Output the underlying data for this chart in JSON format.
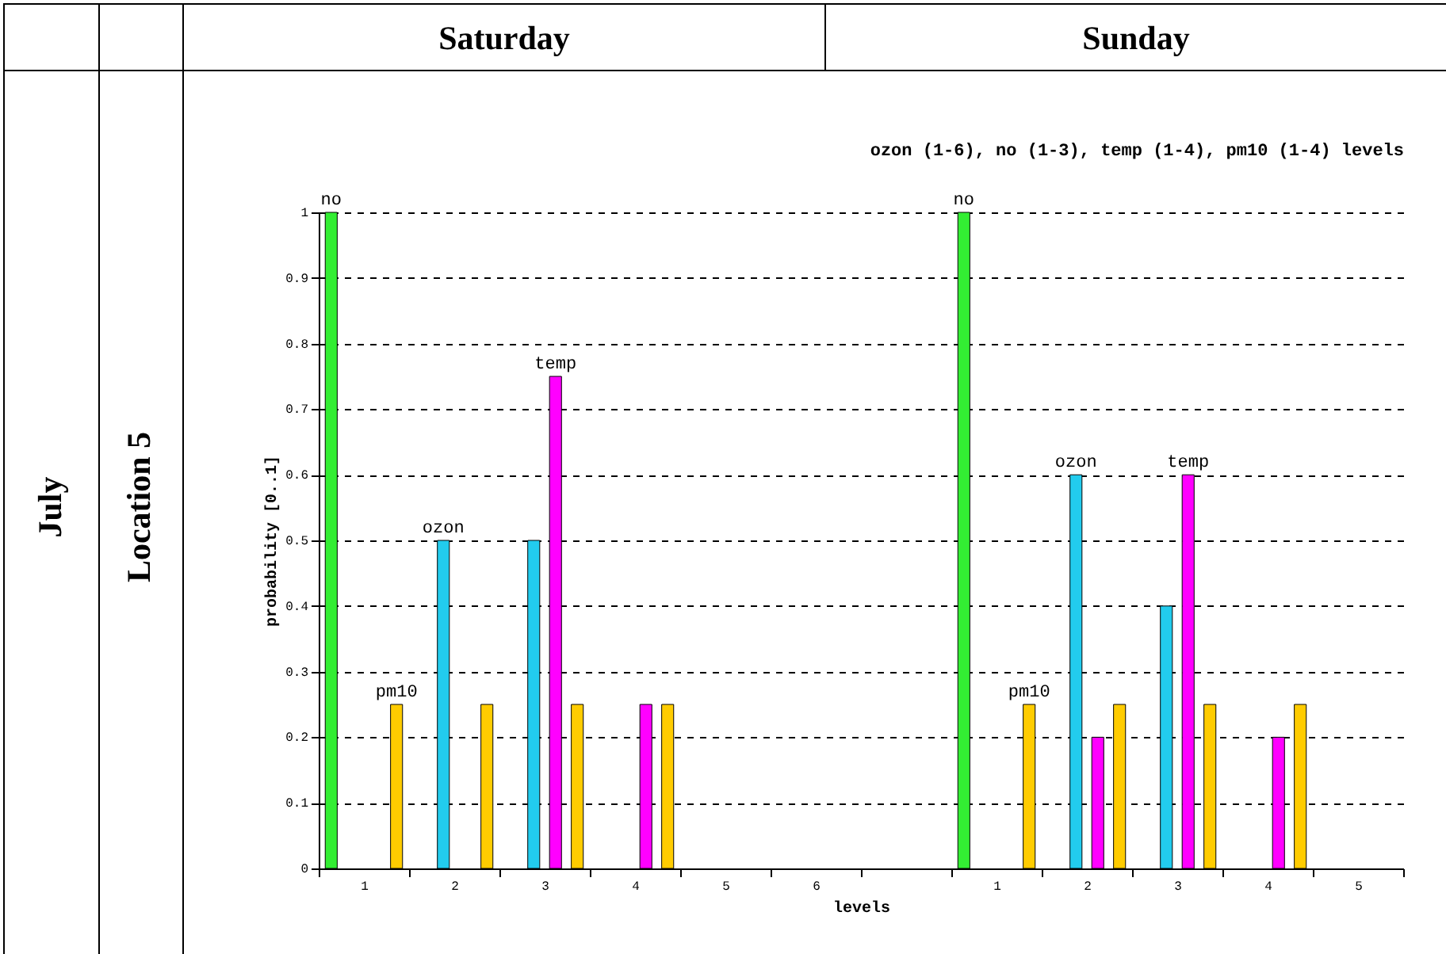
{
  "chart_data": {
    "type": "bar",
    "title": "ozon (1-6), no (1-3), temp (1-4), pm10 (1-4) levels",
    "xlabel": "levels",
    "ylabel": "probability [0..1]",
    "categories": [
      "1",
      "2",
      "3",
      "4",
      "5",
      "6",
      null,
      "1",
      "2",
      "3",
      "4",
      "5"
    ],
    "series": [
      {
        "name": "no",
        "color": "#33ee33",
        "values": [
          1,
          0,
          0,
          null,
          null,
          null,
          null,
          1,
          0,
          0,
          null,
          null
        ]
      },
      {
        "name": "ozon",
        "color": "#22ccee",
        "values": [
          0,
          0.5,
          0.5,
          0,
          0,
          0,
          null,
          0,
          0.6,
          0.4,
          0,
          0
        ]
      },
      {
        "name": "temp",
        "color": "#ff00ff",
        "values": [
          0,
          0,
          0.75,
          0.25,
          null,
          null,
          null,
          0,
          0.2,
          0.6,
          0.2,
          null
        ]
      },
      {
        "name": "pm10",
        "color": "#ffcc00",
        "values": [
          0.25,
          0.25,
          0.25,
          0.25,
          null,
          null,
          null,
          0.25,
          0.25,
          0.25,
          0.25,
          null
        ]
      }
    ],
    "ylim": [
      0,
      1
    ],
    "yticks": [
      0,
      0.1,
      0.2,
      0.3,
      0.4,
      0.5,
      0.6,
      0.7,
      0.8,
      0.9,
      1
    ],
    "grid": "y",
    "annotations": [
      "Saturday",
      "Sunday",
      "July",
      "Location 5"
    ]
  }
}
